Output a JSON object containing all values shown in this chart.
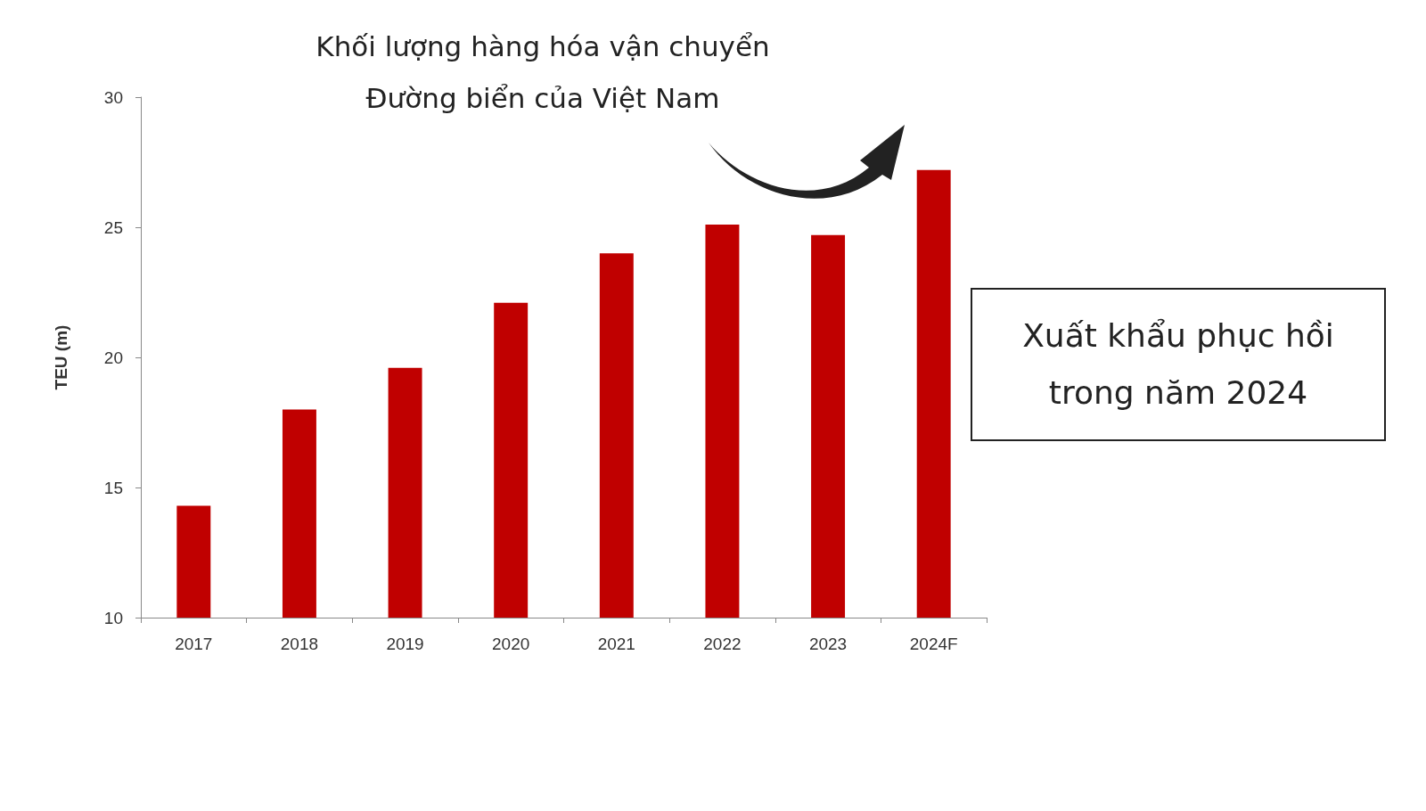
{
  "chart_data": {
    "type": "bar",
    "title": "Khối lượng hàng hóa vận chuyển\nĐường biển của Việt Nam",
    "ylabel": "TEU (m)",
    "categories": [
      "2017",
      "2018",
      "2019",
      "2020",
      "2021",
      "2022",
      "2023",
      "2024F"
    ],
    "values": [
      14.3,
      18.0,
      19.6,
      22.1,
      24.0,
      25.1,
      24.7,
      27.2
    ],
    "color": "#c00000",
    "ylim": [
      10,
      30
    ],
    "yticks": [
      10,
      15,
      20,
      25,
      30
    ],
    "grid": false,
    "annotations": [
      "Xuất khẩu phục hồi trong năm 2024"
    ]
  }
}
